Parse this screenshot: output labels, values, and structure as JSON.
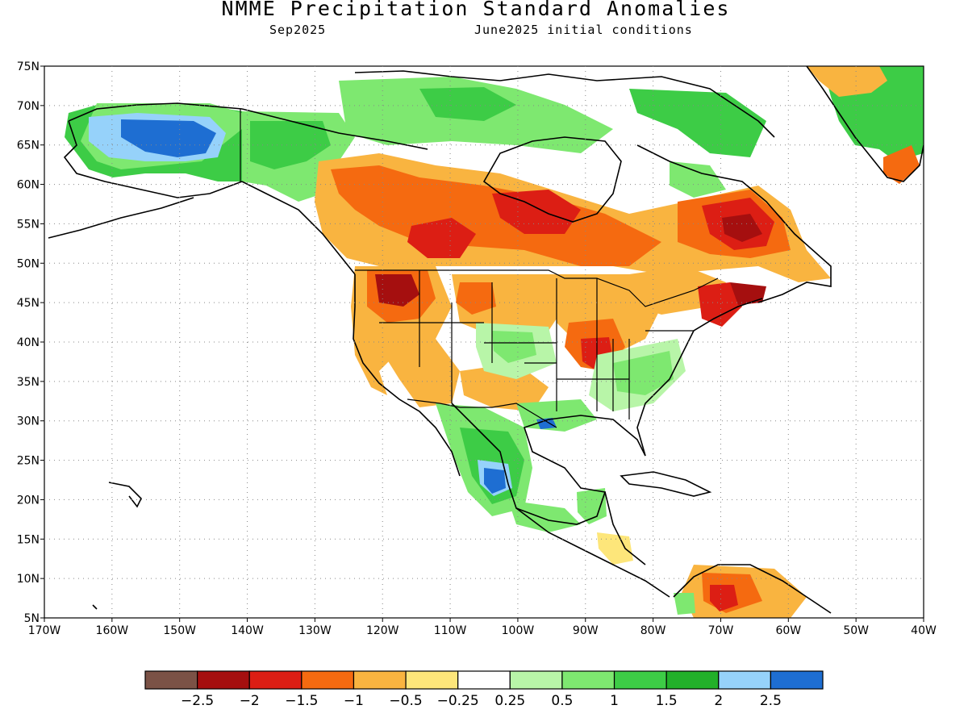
{
  "title": "NMME Precipitation Standard Anomalies",
  "subtitle_left": "Sep2025",
  "subtitle_right": "June2025 initial conditions",
  "lat_labels": [
    "75N",
    "70N",
    "65N",
    "60N",
    "55N",
    "50N",
    "45N",
    "40N",
    "35N",
    "30N",
    "25N",
    "20N",
    "15N",
    "10N",
    "5N"
  ],
  "lon_labels": [
    "170W",
    "160W",
    "150W",
    "140W",
    "130W",
    "120W",
    "110W",
    "100W",
    "90W",
    "80W",
    "70W",
    "60W",
    "50W",
    "40W"
  ],
  "colorbar": {
    "colors": [
      "#7b5246",
      "#a50f0f",
      "#dc1e14",
      "#f56a10",
      "#f9b440",
      "#fde67a",
      "#ffffff",
      "#b8f5a8",
      "#7ee870",
      "#3dcc46",
      "#22b02a",
      "#96d2fa",
      "#1e6ed2"
    ],
    "labels": [
      "-2.5",
      "-2",
      "-1.5",
      "-1",
      "-0.5",
      "-0.25",
      "0.25",
      "0.5",
      "1",
      "1.5",
      "2",
      "2.5"
    ]
  },
  "regions": [
    {
      "name": "alaska-wet",
      "level": 9
    },
    {
      "name": "alaska-very-wet",
      "level": 12
    },
    {
      "name": "canada-prairies-dry",
      "level": 2
    },
    {
      "name": "quebec-very-dry",
      "level": 1
    },
    {
      "name": "pacific-northwest-dry",
      "level": 1
    },
    {
      "name": "ohio-valley-dry",
      "level": 1
    },
    {
      "name": "southeast-wet",
      "level": 8
    },
    {
      "name": "mexico-wet",
      "level": 9
    },
    {
      "name": "mexico-very-wet",
      "level": 12
    },
    {
      "name": "greenland-wet",
      "level": 9
    },
    {
      "name": "venezuela-dry",
      "level": 2
    }
  ]
}
